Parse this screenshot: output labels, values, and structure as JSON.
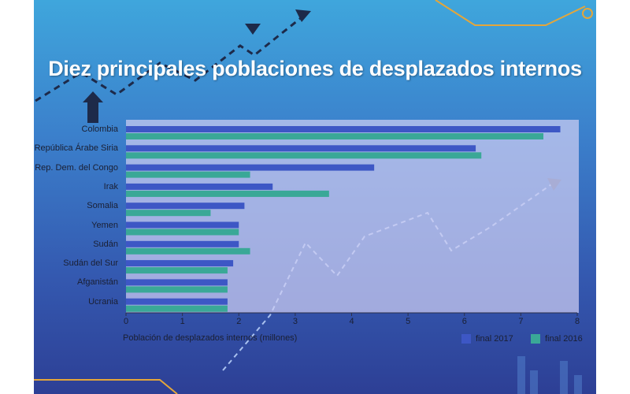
{
  "colors": {
    "series_2017": "#3d57c5",
    "series_2016": "#3aa897"
  },
  "chart_data": {
    "type": "bar",
    "orientation": "horizontal",
    "title": "Diez principales poblaciones de desplazados internos",
    "xlabel": "Población de desplazados internos (millones)",
    "ylabel": "",
    "xlim": [
      0,
      8
    ],
    "xticks": [
      "0",
      "1",
      "2",
      "3",
      "4",
      "5",
      "6",
      "7",
      "8"
    ],
    "grid": false,
    "legend": "bottom-right",
    "categories": [
      "Colombia",
      "República Árabe Siria",
      "Rep. Dem. del Congo",
      "Irak",
      "Somalia",
      "Yemen",
      "Sudán",
      "Sudán del Sur",
      "Afganistán",
      "Ucrania"
    ],
    "series": [
      {
        "name": "final 2017",
        "values": [
          7.7,
          6.2,
          4.4,
          2.6,
          2.1,
          2.0,
          2.0,
          1.9,
          1.8,
          1.8
        ]
      },
      {
        "name": "final 2016",
        "values": [
          7.4,
          6.3,
          2.2,
          3.6,
          1.5,
          2.0,
          2.2,
          1.8,
          1.8,
          1.8
        ]
      }
    ]
  }
}
